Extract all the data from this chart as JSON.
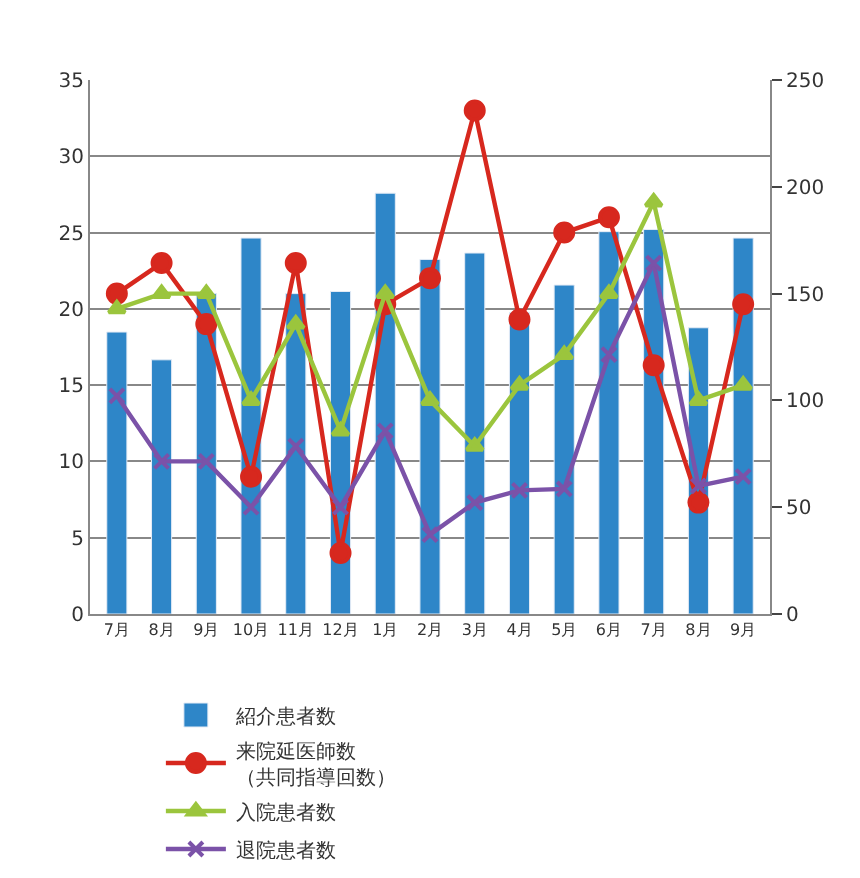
{
  "chart_data": {
    "type": "bar",
    "categories": [
      "7月",
      "8月",
      "9月",
      "10月",
      "11月",
      "12月",
      "1月",
      "2月",
      "3月",
      "4月",
      "5月",
      "6月",
      "7月",
      "8月",
      "9月"
    ],
    "series": [
      {
        "name": "紹介患者数",
        "axis": "y2",
        "color": "#2e86c8",
        "values": [
          132,
          119,
          150,
          176,
          150,
          151,
          197,
          166,
          169,
          141,
          154,
          179,
          180,
          134,
          176
        ]
      },
      {
        "name": "来院延医師数（共同指導回数）",
        "type": "line",
        "color": "#d7281e",
        "marker": "circle",
        "values": [
          21,
          23,
          19,
          9,
          23,
          4,
          20.3,
          22,
          33,
          19.3,
          25,
          26,
          16.3,
          7.3,
          20.3
        ]
      },
      {
        "name": "入院患者数",
        "type": "line",
        "color": "#9bc53d",
        "marker": "triangle",
        "values": [
          20,
          21,
          21,
          14,
          19,
          12,
          21,
          14,
          11,
          15,
          17,
          21,
          27,
          14,
          15
        ]
      },
      {
        "name": "退院患者数",
        "type": "line",
        "color": "#7b52a8",
        "marker": "cross",
        "values": [
          14.3,
          10,
          10,
          7,
          11,
          7,
          12,
          5.2,
          7.3,
          8.1,
          8.2,
          17,
          23,
          8.4,
          9
        ]
      }
    ],
    "ylim": [
      0,
      35
    ],
    "yticks": [
      0,
      5,
      10,
      15,
      20,
      25,
      30,
      35
    ],
    "y2lim": [
      0,
      250
    ],
    "y2ticks": [
      0,
      50,
      100,
      150,
      200,
      250
    ],
    "grid": "y",
    "legend": "bottom",
    "line_style": "solid"
  }
}
